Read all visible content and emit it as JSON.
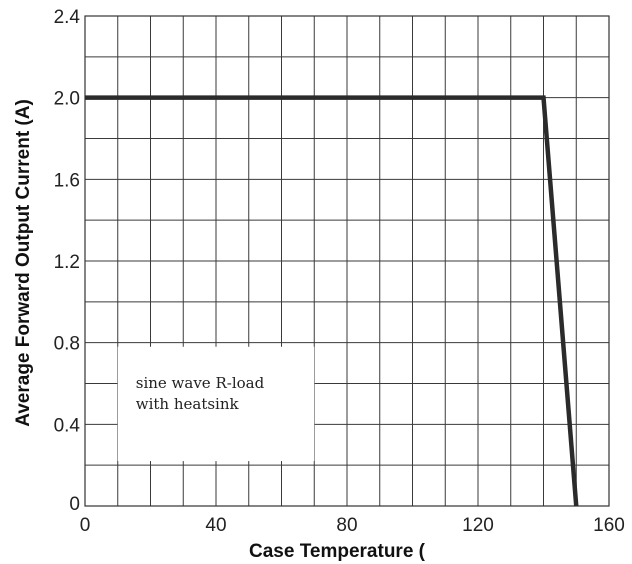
{
  "chart_data": {
    "type": "line",
    "xlabel": "Case Temperature (",
    "ylabel": "Average Forward Output Current (A)",
    "xlim": [
      0,
      160
    ],
    "ylim": [
      0,
      2.4
    ],
    "x_ticks": [
      0,
      40,
      80,
      120,
      160
    ],
    "y_ticks": [
      0,
      0.4,
      0.8,
      1.2,
      1.6,
      2.0,
      2.4
    ],
    "x_tick_labels": [
      "0",
      "40",
      "80",
      "120",
      "160"
    ],
    "y_tick_labels": [
      "0",
      "0.4",
      "0.8",
      "1.2",
      "1.6",
      "2.0",
      "2.4"
    ],
    "grid": true,
    "x_grid_step": 10,
    "y_grid_step": 0.2,
    "series": [
      {
        "x": [
          0,
          140,
          150
        ],
        "y": [
          2.0,
          2.0,
          0
        ],
        "color": "#2b2b2b"
      }
    ],
    "annotation": {
      "lines": [
        "sine wave R-load",
        "with heatsink"
      ],
      "box_x_range": [
        10,
        70
      ],
      "box_y_range": [
        0.22,
        0.78
      ]
    }
  }
}
